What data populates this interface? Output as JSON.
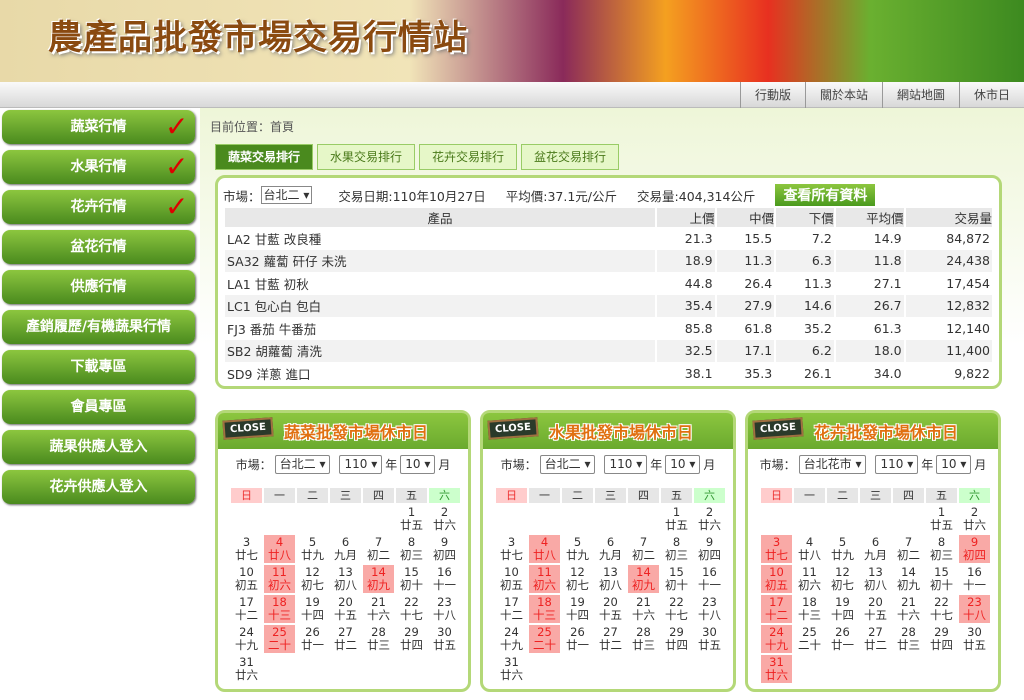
{
  "site_title": "農產品批發市場交易行情站",
  "top_links": [
    "行動版",
    "關於本站",
    "網站地圖",
    "休市日"
  ],
  "sidebar": [
    "蔬菜行情",
    "水果行情",
    "花卉行情",
    "盆花行情",
    "供應行情",
    "產銷履歷/有機蔬果行情",
    "下載專區",
    "會員專區",
    "蔬果供應人登入",
    "花卉供應人登入"
  ],
  "breadcrumb": "目前位置：首頁",
  "tabs": [
    "蔬菜交易排行",
    "水果交易排行",
    "花卉交易排行",
    "盆花交易排行"
  ],
  "info": {
    "market_label": "市場：",
    "market": "台北二",
    "date": "交易日期:110年10月27日",
    "avg": "平均價:37.1元/公斤",
    "volume": "交易量:404,314公斤",
    "view_all": "查看所有資料"
  },
  "table": {
    "headers": [
      "產品",
      "上價",
      "中價",
      "下價",
      "平均價",
      "交易量"
    ],
    "rows": [
      [
        "LA2 甘藍 改良種",
        "21.3",
        "15.5",
        "7.2",
        "14.9",
        "84,872"
      ],
      [
        "SA32 蘿蔔 矸仔 未洗",
        "18.9",
        "11.3",
        "6.3",
        "11.8",
        "24,438"
      ],
      [
        "LA1 甘藍 初秋",
        "44.8",
        "26.4",
        "11.3",
        "27.1",
        "17,454"
      ],
      [
        "LC1 包心白 包白",
        "35.4",
        "27.9",
        "14.6",
        "26.7",
        "12,832"
      ],
      [
        "FJ3 番茄 牛番茄",
        "85.8",
        "61.8",
        "35.2",
        "61.3",
        "12,140"
      ],
      [
        "SB2 胡蘿蔔 清洗",
        "32.5",
        "17.1",
        "6.2",
        "18.0",
        "11,400"
      ],
      [
        "SD9 洋蔥 進口",
        "38.1",
        "35.3",
        "26.1",
        "34.0",
        "9,822"
      ]
    ]
  },
  "calendar_common": {
    "close": "CLOSE",
    "market_label": "市場：",
    "year": "110",
    "year_unit": "年",
    "month": "10",
    "month_unit": "月",
    "weekdays": [
      "日",
      "一",
      "二",
      "三",
      "四",
      "五",
      "六"
    ],
    "first_weekday": 5,
    "lunar": [
      "廿五",
      "廿六",
      "廿七",
      "廿八",
      "廿九",
      "九月",
      "初二",
      "初三",
      "初四",
      "初五",
      "初六",
      "初七",
      "初八",
      "初九",
      "初十",
      "十一",
      "十二",
      "十三",
      "十四",
      "十五",
      "十六",
      "十七",
      "十八",
      "十九",
      "二十",
      "廿一",
      "廿二",
      "廿三",
      "廿四",
      "廿五",
      "廿六"
    ]
  },
  "calendars": [
    {
      "title": "蔬菜批發市場休市日",
      "market": "台北二",
      "closed": [
        4,
        11,
        14,
        18,
        25
      ]
    },
    {
      "title": "水果批發市場休市日",
      "market": "台北二",
      "closed": [
        4,
        11,
        14,
        18,
        25
      ]
    },
    {
      "title": "花卉批發市場休市日",
      "market": "台北花市",
      "closed": [
        3,
        9,
        10,
        17,
        23,
        24,
        31
      ]
    }
  ],
  "colors": {
    "green": "#4a8a1e",
    "closed": "#f9a9a6"
  }
}
